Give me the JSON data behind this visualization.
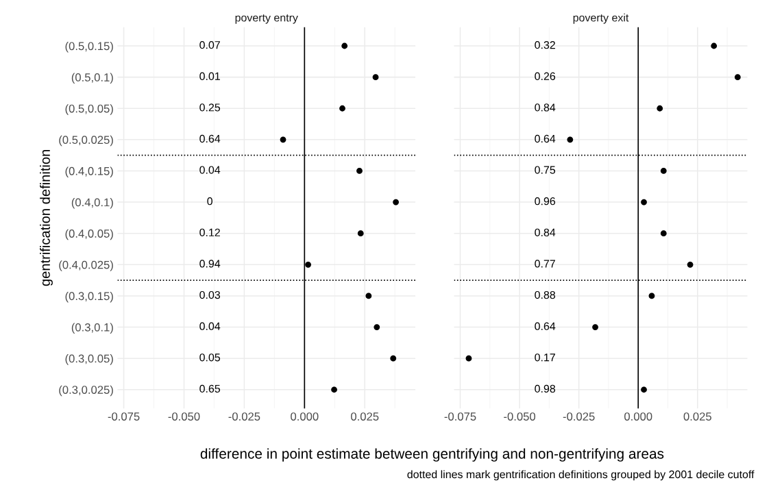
{
  "chart_data": [
    {
      "type": "scatter",
      "title": "poverty entry",
      "ylabel": "gentrification definition",
      "xlabel": "difference in point estimate between gentrifying and non-gentrifying areas",
      "orientation": "horizontal",
      "categories": [
        "(0.5,0.15)",
        "(0.5,0.1)",
        "(0.5,0.05)",
        "(0.5,0.025)",
        "(0.4,0.15)",
        "(0.4,0.1)",
        "(0.4,0.05)",
        "(0.4,0.025)",
        "(0.3,0.15)",
        "(0.3,0.1)",
        "(0.3,0.05)",
        "(0.3,0.025)"
      ],
      "values": [
        0.0166,
        0.0295,
        0.0157,
        -0.0089,
        0.0228,
        0.0379,
        0.0233,
        0.0015,
        0.0266,
        0.03,
        0.0368,
        0.0123
      ],
      "color": "#000000",
      "marker": "circle",
      "xlim": [
        -0.0776,
        0.046
      ],
      "xticks": [
        {
          "value": -0.075,
          "label": "-0.075"
        },
        {
          "value": -0.05,
          "label": "-0.050"
        },
        {
          "value": -0.025,
          "label": "-0.025"
        },
        {
          "value": 0,
          "label": "0.000"
        },
        {
          "value": 0.025,
          "label": "0.025"
        }
      ],
      "grid": true,
      "ref_lines": [
        {
          "axis": "x",
          "value": 0,
          "color": "#000000",
          "line_style": "solid"
        }
      ],
      "annotations": [
        "0.07",
        "0.01",
        "0.25",
        "0.64",
        "0.04",
        "0",
        "0.12",
        "0.94",
        "0.03",
        "0.04",
        "0.05",
        "0.65"
      ]
    },
    {
      "type": "scatter",
      "title": "poverty exit",
      "orientation": "horizontal",
      "tick_labels": "x",
      "categories": [
        null,
        null,
        null,
        null,
        null,
        null,
        null,
        null,
        null,
        null,
        null,
        null
      ],
      "values": [
        0.0319,
        0.0419,
        0.0091,
        -0.0287,
        0.0107,
        0.0024,
        0.0107,
        0.0219,
        0.0057,
        -0.0181,
        -0.0714,
        0.0024
      ],
      "color": "#000000",
      "marker": "circle",
      "xlim": [
        -0.0776,
        0.046
      ],
      "xticks": [
        {
          "value": -0.075,
          "label": "-0.075"
        },
        {
          "value": -0.05,
          "label": "-0.050"
        },
        {
          "value": -0.025,
          "label": "-0.025"
        },
        {
          "value": 0,
          "label": "0.000"
        },
        {
          "value": 0.025,
          "label": "0.025"
        }
      ],
      "grid": true,
      "ref_lines": [
        {
          "axis": "x",
          "value": 0,
          "color": "#000000",
          "line_style": "solid"
        }
      ],
      "annotations": [
        "0.32",
        "0.26",
        "0.84",
        "0.64",
        "0.75",
        "0.96",
        "0.84",
        "0.77",
        "0.88",
        "0.64",
        "0.17",
        "0.98",
        "dotted lines mark gentrification definitions grouped by 2001 decile cutoff"
      ]
    }
  ]
}
